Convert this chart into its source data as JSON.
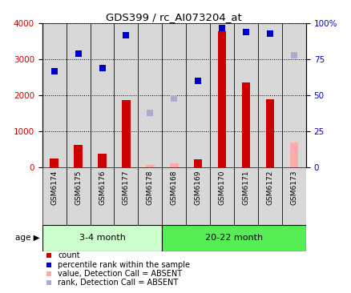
{
  "title": "GDS399 / rc_AI073204_at",
  "samples": [
    "GSM6174",
    "GSM6175",
    "GSM6176",
    "GSM6177",
    "GSM6178",
    "GSM6168",
    "GSM6169",
    "GSM6170",
    "GSM6171",
    "GSM6172",
    "GSM6173"
  ],
  "absent": [
    false,
    false,
    false,
    false,
    true,
    true,
    false,
    false,
    false,
    false,
    true
  ],
  "count_values": [
    250,
    620,
    380,
    1870,
    80,
    120,
    230,
    3780,
    2370,
    1900,
    700
  ],
  "rank_values": [
    67,
    79,
    69,
    92,
    38,
    48,
    60,
    97,
    94,
    93,
    78
  ],
  "count_color": "#cc0000",
  "count_absent_color": "#ffaaaa",
  "rank_color": "#0000cc",
  "rank_absent_color": "#aaaacc",
  "ylim_left": [
    0,
    4000
  ],
  "ylim_right": [
    0,
    100
  ],
  "yticks_left": [
    0,
    1000,
    2000,
    3000,
    4000
  ],
  "yticks_right": [
    0,
    25,
    50,
    75,
    100
  ],
  "ytick_labels_right": [
    "0",
    "25",
    "50",
    "75",
    "100%"
  ],
  "group1_indices": [
    0,
    1,
    2,
    3,
    4
  ],
  "group2_indices": [
    5,
    6,
    7,
    8,
    9,
    10
  ],
  "group1_label": "3-4 month",
  "group2_label": "20-22 month",
  "group1_color": "#ccffcc",
  "group2_color": "#55ee55",
  "bar_bg_color": "#d8d8d8",
  "age_label": "age",
  "legend_items": [
    {
      "label": "count",
      "color": "#cc0000"
    },
    {
      "label": "percentile rank within the sample",
      "color": "#0000cc"
    },
    {
      "label": "value, Detection Call = ABSENT",
      "color": "#ffaaaa"
    },
    {
      "label": "rank, Detection Call = ABSENT",
      "color": "#aaaacc"
    }
  ]
}
